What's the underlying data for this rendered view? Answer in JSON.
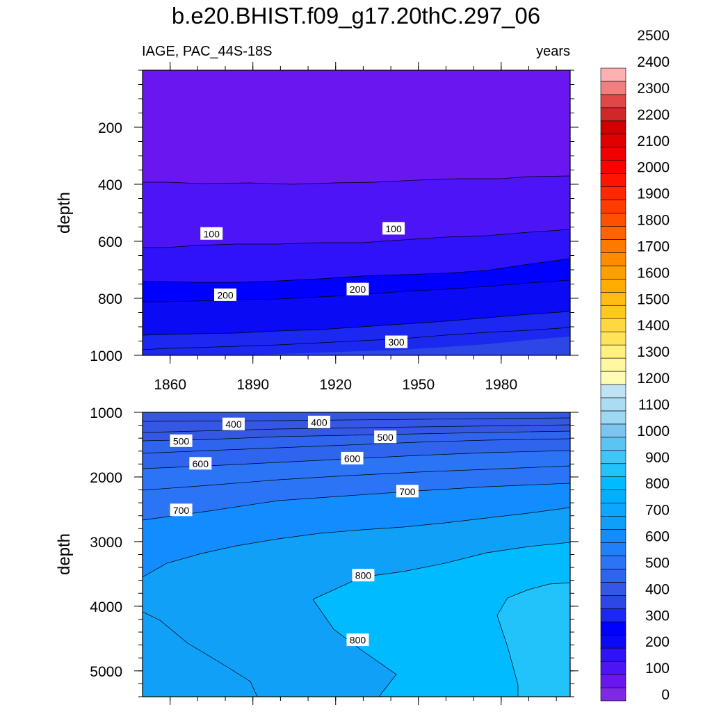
{
  "title": "b.e20.BHIST.f09_g17.20thC.297_06",
  "left_string": "IAGE, PAC_44S-18S",
  "right_string": "years",
  "chart_data": [
    {
      "type": "contour",
      "panel": "upper",
      "variable": "IAGE",
      "units": "years",
      "xlabel": "",
      "ylabel": "depth",
      "xlim": [
        1850,
        2005
      ],
      "ylim": [
        1000,
        0
      ],
      "xticks": [
        1860,
        1890,
        1920,
        1950,
        1980
      ],
      "yticks": [
        200,
        400,
        600,
        800,
        1000
      ],
      "contour_lines": [
        {
          "level": 50,
          "x": [
            1850,
            1880,
            1900,
            1920,
            1950,
            1980,
            2005
          ],
          "depth": [
            395,
            393,
            396,
            393,
            390,
            385,
            380
          ]
        },
        {
          "level": 100,
          "x": [
            1850,
            1880,
            1900,
            1920,
            1950,
            1980,
            2005
          ],
          "depth": [
            570,
            565,
            560,
            558,
            552,
            540,
            528
          ]
        },
        {
          "level": 150,
          "x": [
            1850,
            1880,
            1900,
            1920,
            1950,
            1980,
            2005
          ],
          "depth": [
            680,
            678,
            675,
            670,
            655,
            645,
            635
          ]
        },
        {
          "level": 200,
          "x": [
            1850,
            1880,
            1900,
            1920,
            1950,
            1980,
            2005
          ],
          "depth": [
            775,
            772,
            770,
            765,
            755,
            745,
            735
          ]
        },
        {
          "level": 250,
          "x": [
            1850,
            1880,
            1900,
            1920,
            1950,
            1980,
            2005
          ],
          "depth": [
            880,
            875,
            868,
            860,
            850,
            838,
            825
          ]
        },
        {
          "level": 300,
          "x": [
            1850,
            1880,
            1900,
            1920,
            1950,
            1980,
            2005
          ],
          "depth": [
            980,
            975,
            970,
            960,
            945,
            930,
            910
          ]
        }
      ],
      "line_labels": [
        {
          "text": "100",
          "x": 1875,
          "depth": 575
        },
        {
          "text": "100",
          "x": 1941,
          "depth": 557
        },
        {
          "text": "200",
          "x": 1880,
          "depth": 790
        },
        {
          "text": "200",
          "x": 1928,
          "depth": 770
        },
        {
          "text": "300",
          "x": 1942,
          "depth": 955
        }
      ]
    },
    {
      "type": "contour",
      "panel": "lower",
      "variable": "IAGE",
      "units": "years",
      "xlabel": "",
      "ylabel": "depth",
      "xlim": [
        1850,
        2005
      ],
      "ylim": [
        5400,
        1000
      ],
      "yticks": [
        1000,
        2000,
        3000,
        4000,
        5000
      ],
      "contour_lines": [
        {
          "level": 350,
          "x": [
            1850,
            1920,
            2005
          ],
          "depth": [
            1050,
            1030,
            1010
          ]
        },
        {
          "level": 400,
          "x": [
            1850,
            1920,
            2005
          ],
          "depth": [
            1200,
            1150,
            1100
          ]
        },
        {
          "level": 450,
          "x": [
            1850,
            1920,
            2005
          ],
          "depth": [
            1330,
            1270,
            1220
          ]
        },
        {
          "level": 500,
          "x": [
            1850,
            1920,
            2005
          ],
          "depth": [
            1480,
            1400,
            1350
          ]
        },
        {
          "level": 550,
          "x": [
            1850,
            1920,
            2005
          ],
          "depth": [
            1650,
            1560,
            1500
          ]
        },
        {
          "level": 600,
          "x": [
            1850,
            1920,
            2005
          ],
          "depth": [
            1880,
            1760,
            1680
          ]
        },
        {
          "level": 650,
          "x": [
            1850,
            1920,
            2005
          ],
          "depth": [
            2130,
            2000,
            1900
          ]
        },
        {
          "level": 700,
          "x": [
            1850,
            1880,
            1920,
            1960,
            2005
          ],
          "depth": [
            2650,
            2500,
            2400,
            2280,
            2200
          ]
        },
        {
          "level": 750,
          "x": [
            1850,
            1880,
            1920,
            1960,
            2005
          ],
          "depth": [
            3550,
            3100,
            2880,
            2760,
            2650
          ]
        }
      ],
      "line_labels": [
        {
          "text": "400",
          "x": 1883,
          "depth": 1190
        },
        {
          "text": "400",
          "x": 1914,
          "depth": 1160
        },
        {
          "text": "500",
          "x": 1864,
          "depth": 1450
        },
        {
          "text": "500",
          "x": 1938,
          "depth": 1390
        },
        {
          "text": "600",
          "x": 1871,
          "depth": 1800
        },
        {
          "text": "600",
          "x": 1926,
          "depth": 1720
        },
        {
          "text": "700",
          "x": 1864,
          "depth": 2520
        },
        {
          "text": "700",
          "x": 1946,
          "depth": 2230
        },
        {
          "text": "800",
          "x": 1930,
          "depth": 3530
        },
        {
          "text": "800",
          "x": 1928,
          "depth": 4530
        }
      ]
    },
    {
      "type": "colorbar",
      "levels": [
        0,
        100,
        200,
        300,
        400,
        500,
        600,
        700,
        800,
        900,
        1000,
        1100,
        1200,
        1300,
        1400,
        1500,
        1600,
        1700,
        1800,
        1900,
        2000,
        2100,
        2200,
        2300,
        2400,
        2500
      ],
      "boxes_per_level": 2,
      "colors": [
        "#7f28e6",
        "#6a16f0",
        "#4d14f5",
        "#2e12fa",
        "#0a0af5",
        "#0000ff",
        "#1a28f0",
        "#2d46e6",
        "#3458e4",
        "#2f64ee",
        "#2a74f5",
        "#1f80f8",
        "#138cff",
        "#109ff8",
        "#0aa7ff",
        "#00b0ff",
        "#00bbff",
        "#22c3fa",
        "#40c5f5",
        "#5bc4f2",
        "#7cc5f0",
        "#9ed7f2",
        "#abdcf2",
        "#bde3f5",
        "#fffbb4",
        "#fff8a0",
        "#fff080",
        "#ffe45a",
        "#ffd840",
        "#ffc81e",
        "#ffbc12",
        "#ffad00",
        "#ff9e00",
        "#ff8c00",
        "#ff7800",
        "#ff6400",
        "#ff5000",
        "#ff3c00",
        "#ff2800",
        "#ff1400",
        "#ff0000",
        "#f00000",
        "#e00000",
        "#d00000",
        "#d02828",
        "#e04848",
        "#f08080",
        "#ffb0b0"
      ]
    }
  ]
}
